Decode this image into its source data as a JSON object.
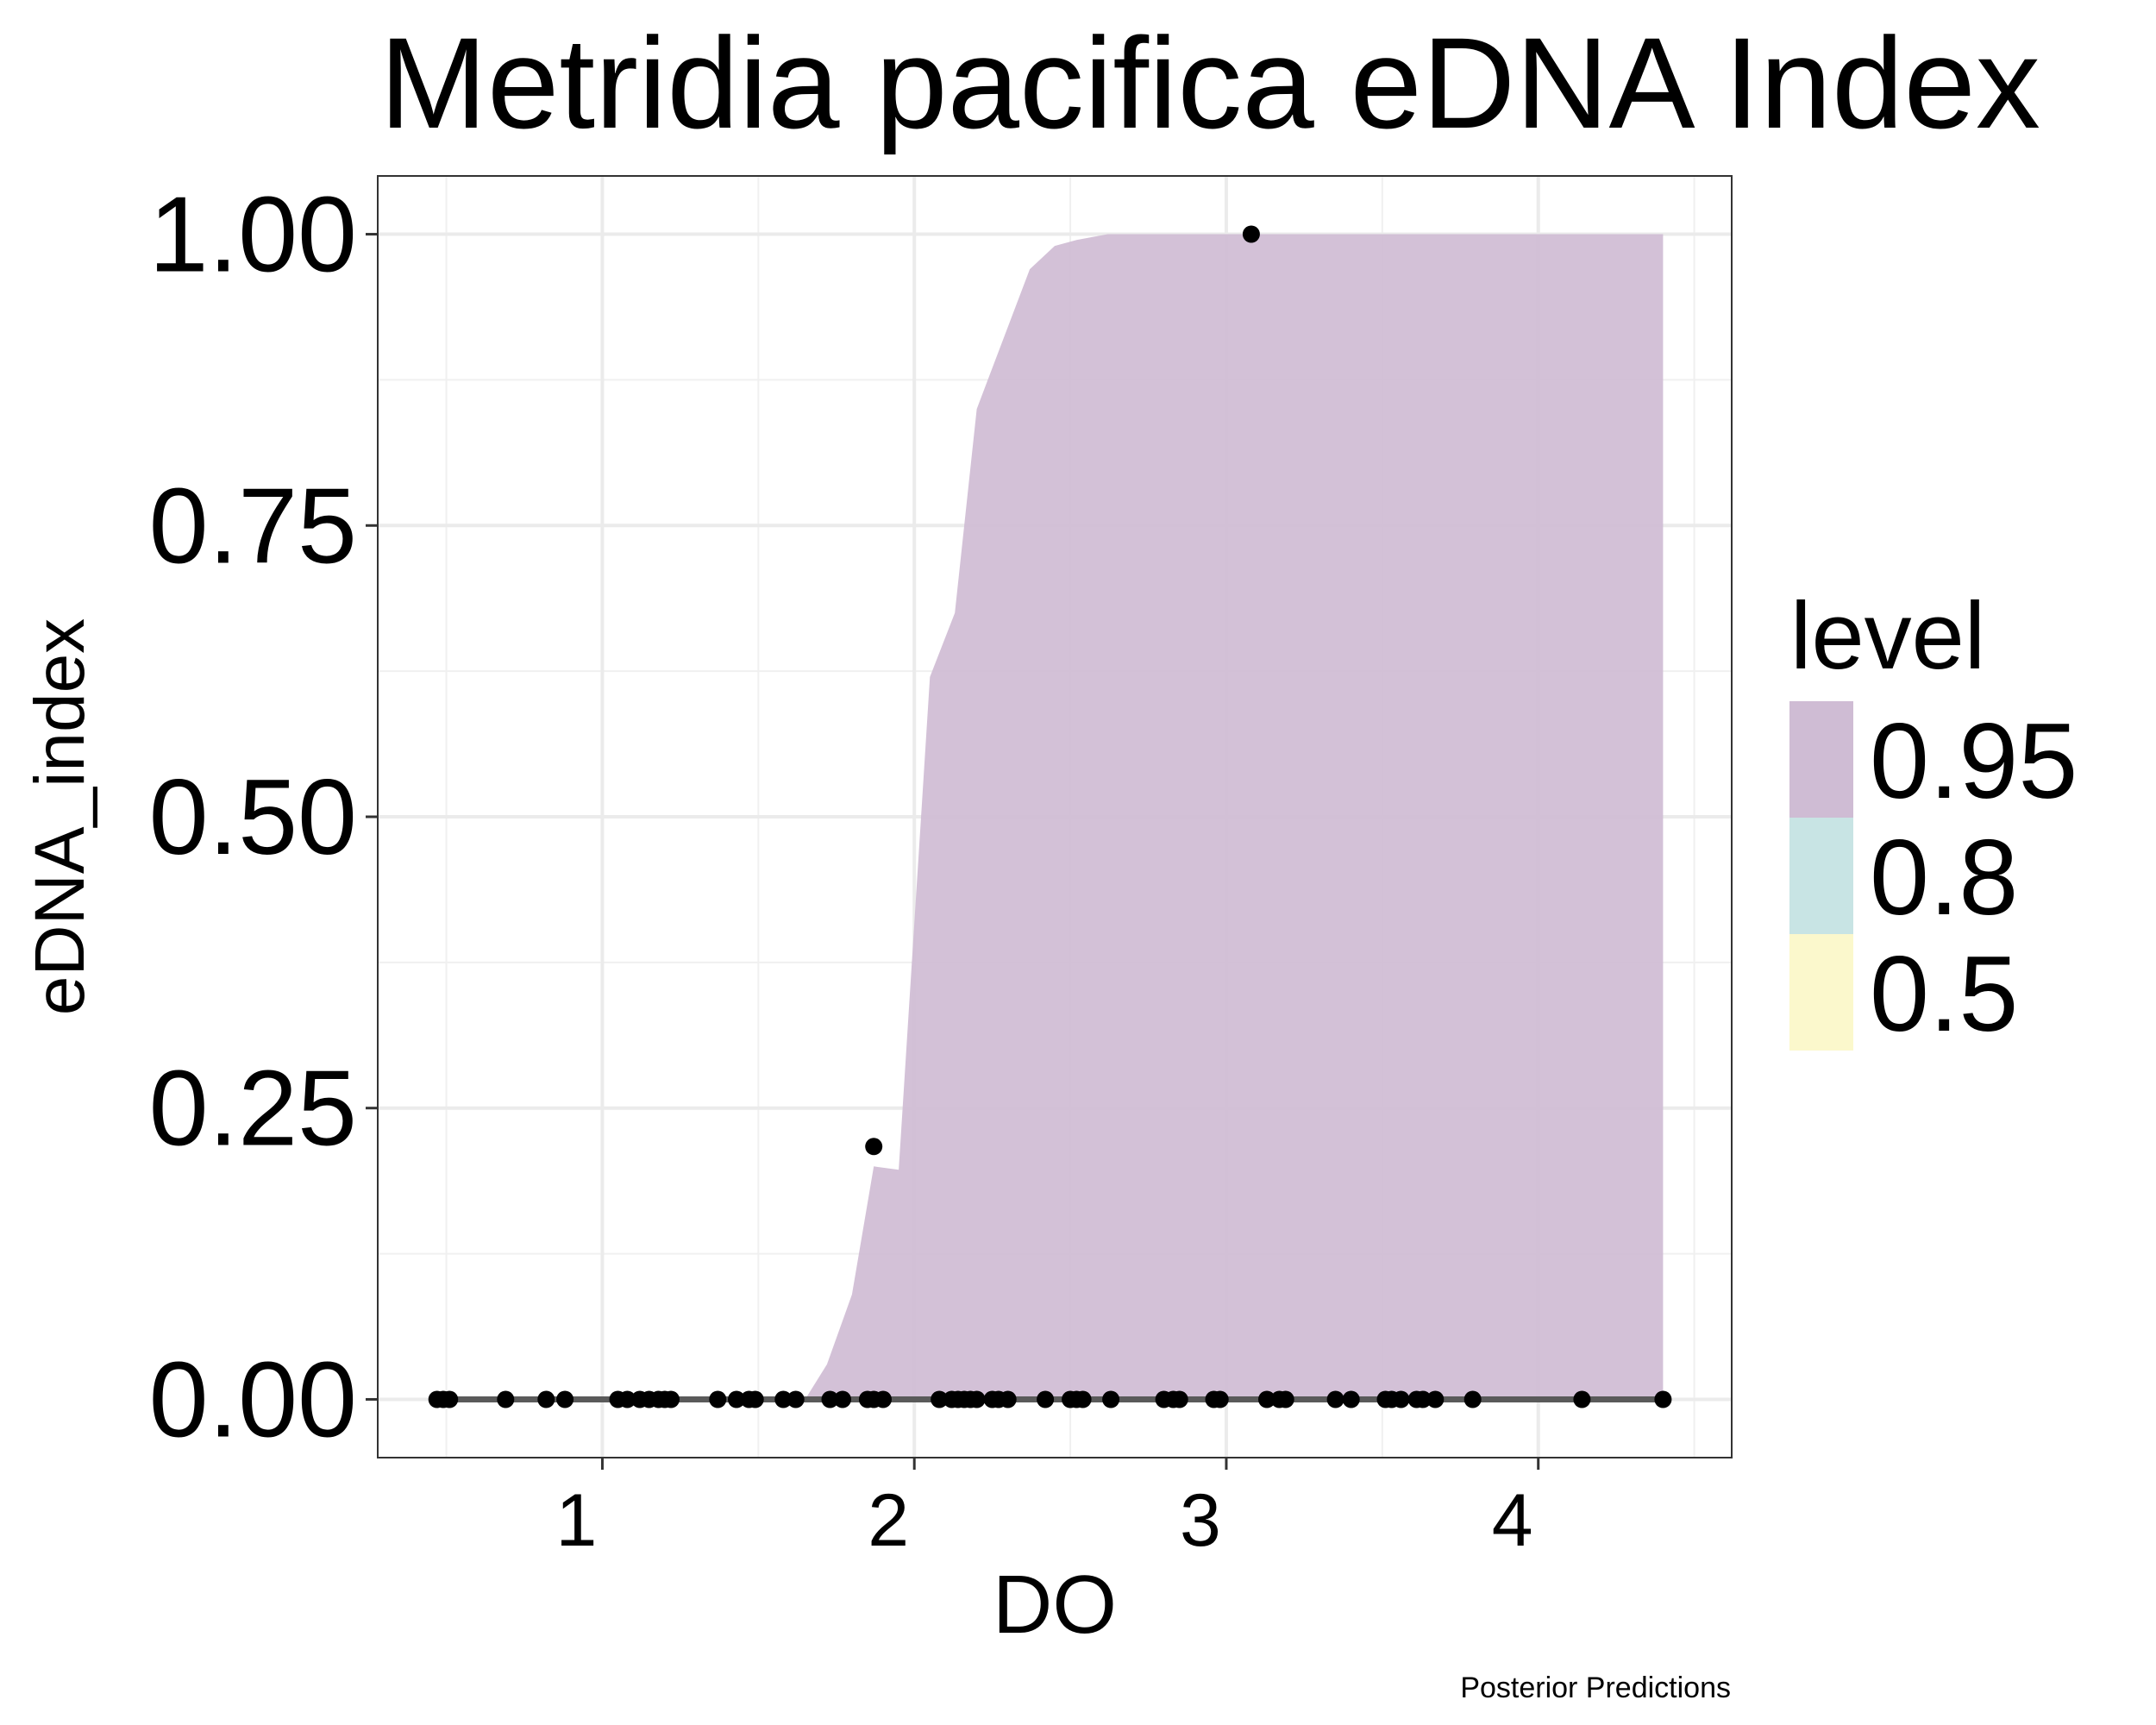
{
  "chart_data": {
    "type": "area",
    "title": "Metridia pacifica eDNA Index",
    "xlabel": "DO",
    "ylabel": "eDNA_index",
    "caption": "Posterior Predictions",
    "xlim": [
      0.28,
      4.62
    ],
    "ylim": [
      -0.05,
      1.05
    ],
    "x_ticks": [
      1,
      2,
      3,
      4
    ],
    "x_tick_labels": [
      "1",
      "2",
      "3",
      "4"
    ],
    "y_ticks": [
      0,
      0.25,
      0.5,
      0.75,
      1.0
    ],
    "y_tick_labels": [
      "0.00",
      "0.25",
      "0.50",
      "0.75",
      "1.00"
    ],
    "grid": true,
    "legend": {
      "title": "level",
      "position": "right",
      "items": [
        {
          "label": "0.95",
          "color": "#cfbcd4"
        },
        {
          "label": "0.8",
          "color": "#c8e4e4"
        },
        {
          "label": "0.5",
          "color": "#fbf8cc"
        }
      ]
    },
    "band_95": {
      "x": [
        1.65,
        1.72,
        1.8,
        1.87,
        1.95,
        2.05,
        2.13,
        2.2,
        2.37,
        2.45,
        2.52,
        2.62,
        2.8,
        3.0,
        4.4
      ],
      "upper": [
        0.0,
        0.03,
        0.09,
        0.2,
        0.197,
        0.62,
        0.675,
        0.85,
        0.97,
        0.99,
        0.995,
        1.0,
        1.0,
        1.0,
        1.0
      ],
      "lower": [
        0,
        0,
        0,
        0,
        0,
        0,
        0,
        0,
        0,
        0,
        0,
        0,
        0,
        0,
        0
      ],
      "color": "#cfbcd4"
    },
    "median_line": {
      "x": [
        0.47,
        4.4
      ],
      "y": [
        0,
        0
      ],
      "color": "#5a5a5a"
    },
    "points": {
      "x": [
        0.47,
        0.49,
        0.51,
        0.69,
        0.82,
        0.88,
        1.05,
        1.08,
        1.12,
        1.15,
        1.18,
        1.2,
        1.22,
        1.37,
        1.43,
        1.47,
        1.49,
        1.58,
        1.62,
        1.73,
        1.77,
        1.85,
        1.87,
        1.9,
        2.08,
        2.12,
        2.14,
        2.16,
        2.18,
        2.2,
        2.25,
        2.27,
        2.3,
        2.42,
        2.5,
        2.52,
        2.54,
        2.63,
        2.8,
        2.83,
        2.85,
        2.96,
        2.98,
        3.13,
        3.17,
        3.19,
        3.35,
        3.4,
        3.51,
        3.53,
        3.56,
        3.61,
        3.63,
        3.67,
        3.79,
        4.14,
        4.4,
        1.87,
        3.08
      ],
      "y": [
        0,
        0,
        0,
        0,
        0,
        0,
        0,
        0,
        0,
        0,
        0,
        0,
        0,
        0,
        0,
        0,
        0,
        0,
        0,
        0,
        0,
        0,
        0,
        0,
        0,
        0,
        0,
        0,
        0,
        0,
        0,
        0,
        0,
        0,
        0,
        0,
        0,
        0,
        0,
        0,
        0,
        0,
        0,
        0,
        0,
        0,
        0,
        0,
        0,
        0,
        0,
        0,
        0,
        0,
        0,
        0,
        0,
        0.217,
        1.0
      ]
    }
  }
}
